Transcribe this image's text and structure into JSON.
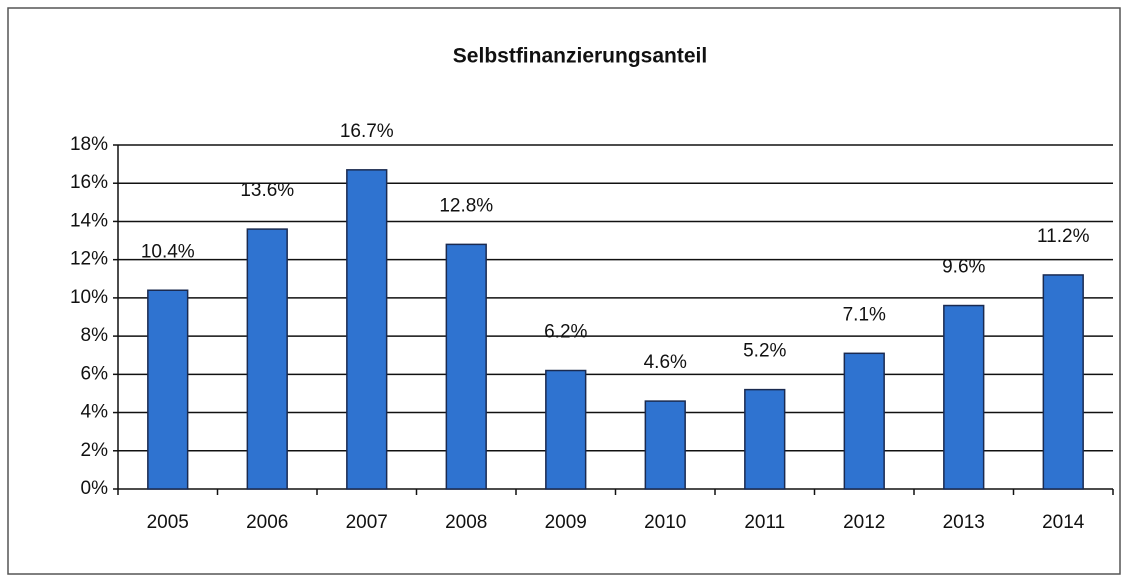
{
  "chart_data": {
    "type": "bar",
    "title": "Selbstfinanzierungsanteil",
    "categories": [
      "2005",
      "2006",
      "2007",
      "2008",
      "2009",
      "2010",
      "2011",
      "2012",
      "2013",
      "2014"
    ],
    "values": [
      10.4,
      13.6,
      16.7,
      12.8,
      6.2,
      4.6,
      5.2,
      7.1,
      9.6,
      11.2
    ],
    "value_labels": [
      "10.4%",
      "13.6%",
      "16.7%",
      "12.8%",
      "6.2%",
      "4.6%",
      "5.2%",
      "7.1%",
      "9.6%",
      "11.2%"
    ],
    "color": "#2f73d0",
    "ylim": [
      0,
      18
    ],
    "yticks": [
      {
        "value": 0,
        "label": "0%"
      },
      {
        "value": 2,
        "label": "2%"
      },
      {
        "value": 4,
        "label": "4%"
      },
      {
        "value": 6,
        "label": "6%"
      },
      {
        "value": 8,
        "label": "8%"
      },
      {
        "value": 10,
        "label": "10%"
      },
      {
        "value": 12,
        "label": "12%"
      },
      {
        "value": 14,
        "label": "14%"
      },
      {
        "value": 16,
        "label": "16%"
      },
      {
        "value": 18,
        "label": "18%"
      }
    ],
    "grid": true
  }
}
